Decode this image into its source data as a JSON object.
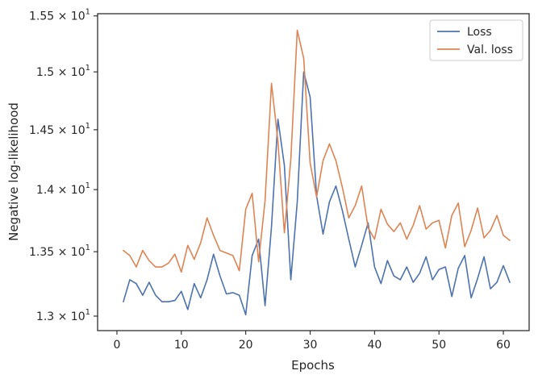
{
  "chart_data": {
    "type": "line",
    "xlabel": "Epochs",
    "ylabel": "Negative log-likelihood",
    "xlim": [
      -3,
      64
    ],
    "ylim": [
      12.89,
      15.52
    ],
    "yscale": "log",
    "legend_position": "top-right",
    "grid": false,
    "x_ticks": [
      0,
      10,
      20,
      30,
      40,
      50,
      60
    ],
    "y_ticks": [
      {
        "value": 13.0,
        "mantissa": "1.3",
        "base": "10",
        "exponent": "1"
      },
      {
        "value": 13.5,
        "mantissa": "1.35",
        "base": "10",
        "exponent": "1"
      },
      {
        "value": 14.0,
        "mantissa": "1.4",
        "base": "10",
        "exponent": "1"
      },
      {
        "value": 14.5,
        "mantissa": "1.45",
        "base": "10",
        "exponent": "1"
      },
      {
        "value": 15.0,
        "mantissa": "1.5",
        "base": "10",
        "exponent": "1"
      },
      {
        "value": 15.5,
        "mantissa": "1.55",
        "base": "10",
        "exponent": "1"
      }
    ],
    "x": [
      1,
      2,
      3,
      4,
      5,
      6,
      7,
      8,
      9,
      10,
      11,
      12,
      13,
      14,
      15,
      16,
      17,
      18,
      19,
      20,
      21,
      22,
      23,
      24,
      25,
      26,
      27,
      28,
      29,
      30,
      31,
      32,
      33,
      34,
      35,
      36,
      37,
      38,
      39,
      40,
      41,
      42,
      43,
      44,
      45,
      46,
      47,
      48,
      49,
      50,
      51,
      52,
      53,
      54,
      55,
      56,
      57,
      58,
      59,
      60,
      61
    ],
    "series": [
      {
        "name": "Loss",
        "color": "#4c72b0",
        "values": [
          13.11,
          13.28,
          13.25,
          13.16,
          13.26,
          13.16,
          13.11,
          13.11,
          13.12,
          13.19,
          13.05,
          13.25,
          13.14,
          13.28,
          13.48,
          13.31,
          13.17,
          13.18,
          13.16,
          13.01,
          13.47,
          13.6,
          13.08,
          13.7,
          14.59,
          14.2,
          13.28,
          13.9,
          15.0,
          14.78,
          13.95,
          13.64,
          13.9,
          14.03,
          13.83,
          13.6,
          13.38,
          13.55,
          13.73,
          13.38,
          13.25,
          13.43,
          13.31,
          13.28,
          13.38,
          13.26,
          13.33,
          13.46,
          13.28,
          13.36,
          13.38,
          13.15,
          13.37,
          13.47,
          13.14,
          13.29,
          13.46,
          13.21,
          13.26,
          13.39,
          13.26
        ]
      },
      {
        "name": "Val. loss",
        "color": "#dd8452",
        "values": [
          13.51,
          13.47,
          13.38,
          13.51,
          13.43,
          13.38,
          13.38,
          13.41,
          13.48,
          13.34,
          13.55,
          13.44,
          13.57,
          13.77,
          13.63,
          13.51,
          13.49,
          13.47,
          13.35,
          13.84,
          13.97,
          13.42,
          13.91,
          14.9,
          14.4,
          13.65,
          14.25,
          15.37,
          15.12,
          14.22,
          13.94,
          14.24,
          14.38,
          14.24,
          14.02,
          13.77,
          13.87,
          14.03,
          13.69,
          13.6,
          13.84,
          13.72,
          13.66,
          13.73,
          13.6,
          13.71,
          13.87,
          13.68,
          13.73,
          13.75,
          13.53,
          13.79,
          13.89,
          13.54,
          13.67,
          13.85,
          13.61,
          13.67,
          13.79,
          13.63,
          13.59
        ]
      }
    ]
  }
}
